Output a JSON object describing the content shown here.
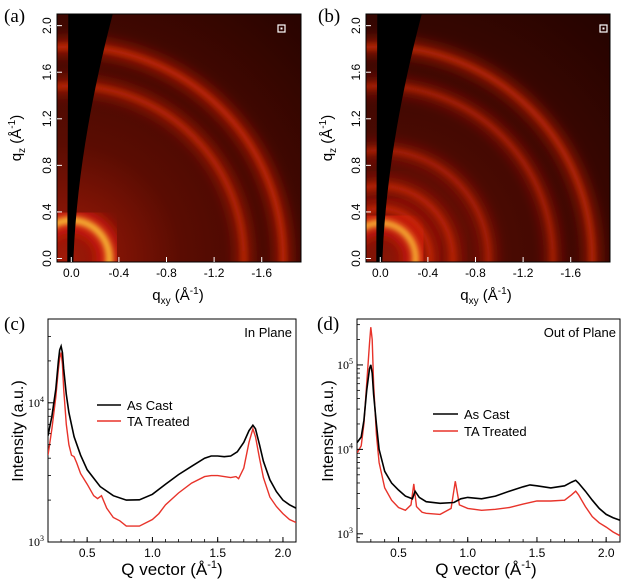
{
  "chart_data": [
    {
      "type": "heatmap",
      "panel_label": "(a)",
      "xlabel_main": "q",
      "xlabel_sub": "xy",
      "xlabel_unit": " (Å",
      "xlabel_exp": "-1",
      "xlabel_close": ")",
      "ylabel_main": "q",
      "ylabel_sub": "z",
      "ylabel_unit": " (Å",
      "ylabel_exp": "-1",
      "ylabel_close": ")",
      "xticks": [
        "0.0",
        "-0.4",
        "-0.8",
        "-1.2",
        "-1.6"
      ],
      "xtick_values": [
        0.0,
        -0.4,
        -0.8,
        -1.2,
        -1.6
      ],
      "yticks": [
        "0.0",
        "0.4",
        "0.8",
        "1.2",
        "1.6",
        "2.0"
      ],
      "ytick_values": [
        0.0,
        0.4,
        0.8,
        1.2,
        1.6,
        2.0
      ],
      "xlim": [
        0.12,
        -1.93
      ],
      "ylim": [
        -0.03,
        2.1
      ],
      "rings": [
        {
          "q": 0.32,
          "intensity": 1.0
        },
        {
          "q": 1.45,
          "intensity": 0.45
        },
        {
          "q": 1.78,
          "intensity": 0.55
        }
      ]
    },
    {
      "type": "heatmap",
      "panel_label": "(b)",
      "xlabel_main": "q",
      "xlabel_sub": "xy",
      "xlabel_unit": " (Å",
      "xlabel_exp": "-1",
      "xlabel_close": ")",
      "ylabel_main": "q",
      "ylabel_sub": "z",
      "ylabel_unit": " (Å",
      "ylabel_exp": "-1",
      "ylabel_close": ")",
      "xticks": [
        "0.0",
        "-0.4",
        "-0.8",
        "-1.2",
        "-1.6"
      ],
      "xtick_values": [
        0.0,
        -0.4,
        -0.8,
        -1.2,
        -1.6
      ],
      "yticks": [
        "0.0",
        "0.4",
        "0.8",
        "1.2",
        "1.6",
        "2.0"
      ],
      "ytick_values": [
        0.0,
        0.4,
        0.8,
        1.2,
        1.6,
        2.0
      ],
      "xlim": [
        0.12,
        -1.93
      ],
      "ylim": [
        -0.03,
        2.1
      ],
      "rings": [
        {
          "q": 0.3,
          "intensity": 1.0
        },
        {
          "q": 0.42,
          "intensity": 0.35
        },
        {
          "q": 0.61,
          "intensity": 0.35
        },
        {
          "q": 0.91,
          "intensity": 0.3
        },
        {
          "q": 1.45,
          "intensity": 0.35
        },
        {
          "q": 1.78,
          "intensity": 0.5
        }
      ]
    },
    {
      "type": "line",
      "panel_label": "(c)",
      "title": "In Plane",
      "xlabel_main": "Q vector (Å",
      "xlabel_exp": "-1",
      "xlabel_close": ")",
      "ylabel": "Intensity (a.u.)",
      "xlim": [
        0.2,
        2.1
      ],
      "ylim": [
        1000,
        40000
      ],
      "yscale": "log",
      "xticks": [
        "0.5",
        "1.0",
        "1.5",
        "2.0"
      ],
      "xtick_values": [
        0.5,
        1.0,
        1.5,
        2.0
      ],
      "yticks": [
        {
          "value": 1000,
          "base": "10",
          "exp": "3"
        },
        {
          "value": 10000,
          "base": "10",
          "exp": "4"
        }
      ],
      "series": [
        {
          "name": "As Cast",
          "color": "#000000",
          "x": [
            0.2,
            0.23,
            0.26,
            0.28,
            0.29,
            0.3,
            0.31,
            0.32,
            0.34,
            0.36,
            0.4,
            0.45,
            0.5,
            0.6,
            0.7,
            0.8,
            0.9,
            1.0,
            1.1,
            1.2,
            1.3,
            1.4,
            1.45,
            1.5,
            1.55,
            1.6,
            1.65,
            1.7,
            1.74,
            1.77,
            1.79,
            1.82,
            1.85,
            1.9,
            1.95,
            2.0,
            2.05,
            2.1
          ],
          "y": [
            5800,
            8000,
            12500,
            20000,
            24000,
            25500,
            23000,
            17500,
            11500,
            8500,
            5700,
            4200,
            3300,
            2500,
            2150,
            2000,
            2010,
            2200,
            2600,
            3050,
            3500,
            4000,
            4150,
            4150,
            4100,
            4150,
            4450,
            5200,
            6300,
            6900,
            6500,
            5000,
            3800,
            2800,
            2300,
            2000,
            1850,
            1750
          ]
        },
        {
          "name": "TA Treated",
          "color": "#e8332a",
          "x": [
            0.2,
            0.23,
            0.26,
            0.28,
            0.29,
            0.3,
            0.31,
            0.32,
            0.34,
            0.36,
            0.38,
            0.4,
            0.42,
            0.45,
            0.5,
            0.55,
            0.58,
            0.61,
            0.65,
            0.7,
            0.75,
            0.8,
            0.9,
            1.0,
            1.05,
            1.1,
            1.2,
            1.3,
            1.4,
            1.45,
            1.5,
            1.6,
            1.64,
            1.66,
            1.7,
            1.74,
            1.77,
            1.79,
            1.82,
            1.85,
            1.9,
            1.95,
            2.0,
            2.05,
            2.1
          ],
          "y": [
            4200,
            6500,
            11000,
            17500,
            21000,
            23000,
            19000,
            12500,
            7000,
            5000,
            4200,
            4100,
            3700,
            3100,
            2600,
            2150,
            2050,
            2150,
            1750,
            1500,
            1420,
            1300,
            1300,
            1450,
            1600,
            1850,
            2250,
            2650,
            2950,
            3000,
            3000,
            2900,
            2950,
            2850,
            3400,
            5200,
            6500,
            5700,
            4000,
            2900,
            2100,
            1800,
            1600,
            1450,
            1380
          ]
        }
      ]
    },
    {
      "type": "line",
      "panel_label": "(d)",
      "title": "Out of Plane",
      "xlabel_main": "Q vector (Å",
      "xlabel_exp": "-1",
      "xlabel_close": ")",
      "ylabel": "Intensity (a.u.)",
      "xlim": [
        0.2,
        2.1
      ],
      "ylim": [
        800,
        350000
      ],
      "yscale": "log",
      "xticks": [
        "0.5",
        "1.0",
        "1.5",
        "2.0"
      ],
      "xtick_values": [
        0.5,
        1.0,
        1.5,
        2.0
      ],
      "yticks": [
        {
          "value": 1000,
          "base": "10",
          "exp": "3"
        },
        {
          "value": 10000,
          "base": "10",
          "exp": "4"
        },
        {
          "value": 100000,
          "base": "10",
          "exp": "5"
        }
      ],
      "series": [
        {
          "name": "As Cast",
          "color": "#000000",
          "x": [
            0.2,
            0.23,
            0.25,
            0.27,
            0.29,
            0.3,
            0.31,
            0.32,
            0.34,
            0.36,
            0.4,
            0.45,
            0.5,
            0.55,
            0.6,
            0.62,
            0.65,
            0.7,
            0.8,
            0.9,
            0.95,
            1.0,
            1.1,
            1.2,
            1.3,
            1.4,
            1.45,
            1.5,
            1.6,
            1.7,
            1.75,
            1.78,
            1.8,
            1.85,
            1.9,
            1.95,
            2.0,
            2.05,
            2.1
          ],
          "y": [
            12000,
            14000,
            22000,
            50000,
            90000,
            100000,
            80000,
            45000,
            20000,
            10000,
            5500,
            4000,
            3300,
            2800,
            2600,
            3200,
            2700,
            2400,
            2300,
            2350,
            2600,
            2700,
            2600,
            2800,
            3200,
            3600,
            3800,
            3700,
            3500,
            3700,
            4100,
            4300,
            4000,
            3200,
            2500,
            2000,
            1700,
            1550,
            1450
          ]
        },
        {
          "name": "TA Treated",
          "color": "#e8332a",
          "x": [
            0.2,
            0.23,
            0.25,
            0.27,
            0.29,
            0.3,
            0.31,
            0.32,
            0.34,
            0.36,
            0.4,
            0.45,
            0.5,
            0.55,
            0.59,
            0.61,
            0.63,
            0.67,
            0.7,
            0.8,
            0.88,
            0.91,
            0.94,
            1.0,
            1.1,
            1.2,
            1.3,
            1.4,
            1.5,
            1.6,
            1.7,
            1.75,
            1.78,
            1.8,
            1.85,
            1.9,
            1.95,
            2.0,
            2.05,
            2.1
          ],
          "y": [
            9000,
            11000,
            20000,
            60000,
            180000,
            280000,
            200000,
            60000,
            15000,
            7000,
            3500,
            2500,
            2050,
            1900,
            2200,
            3900,
            2100,
            1800,
            1750,
            1700,
            2000,
            4200,
            2200,
            2000,
            1900,
            1950,
            2050,
            2250,
            2450,
            2450,
            2500,
            2900,
            3200,
            2900,
            2100,
            1600,
            1350,
            1200,
            1050,
            950
          ]
        }
      ]
    }
  ]
}
